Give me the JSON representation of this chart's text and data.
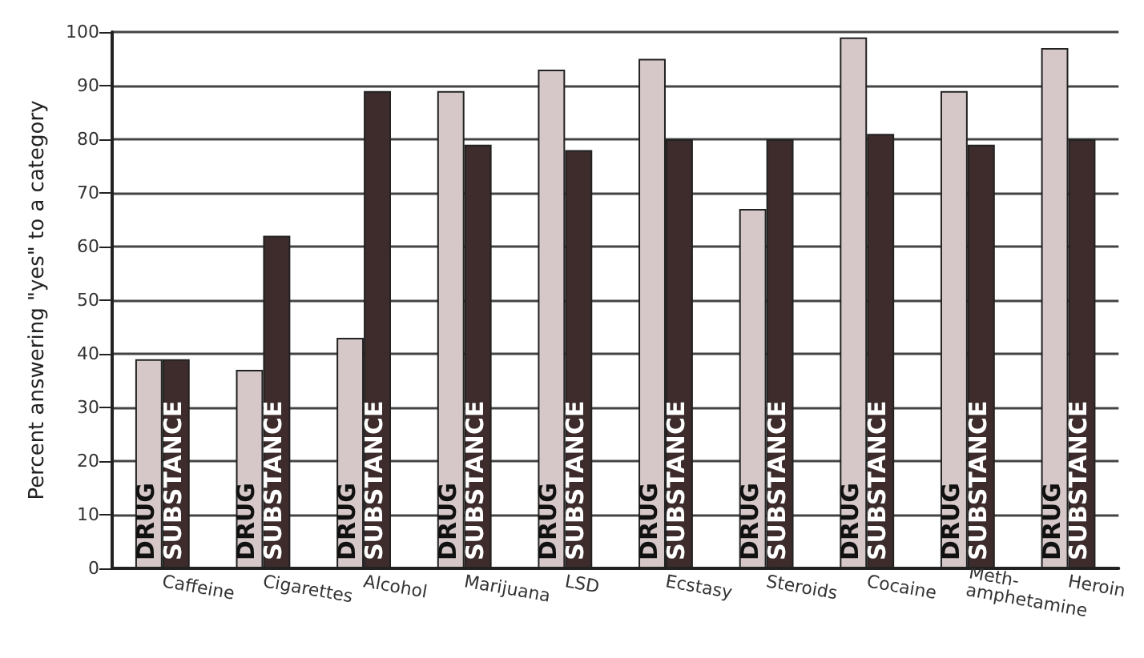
{
  "chart_data": {
    "type": "bar",
    "ylabel": "Percent answering \"yes\" to a category",
    "categories": [
      "Caffeine",
      "Cigarettes",
      "Alcohol",
      "Marijuana",
      "LSD",
      "Ecstasy",
      "Steroids",
      "Cocaine",
      "Meth-\namphetamine",
      "Heroin"
    ],
    "series": [
      {
        "name": "DRUG",
        "color": "#d6c8c8",
        "values": [
          39,
          37,
          43,
          89,
          93,
          95,
          67,
          99,
          89,
          97
        ]
      },
      {
        "name": "SUBSTANCE",
        "color": "#3e2c2c",
        "values": [
          39,
          62,
          89,
          79,
          78,
          80,
          80,
          81,
          79,
          80
        ]
      }
    ],
    "ylim": [
      0,
      100
    ],
    "yticks": [
      0,
      10,
      20,
      30,
      40,
      50,
      60,
      70,
      80,
      90,
      100
    ],
    "grid": "y",
    "legend": false
  }
}
